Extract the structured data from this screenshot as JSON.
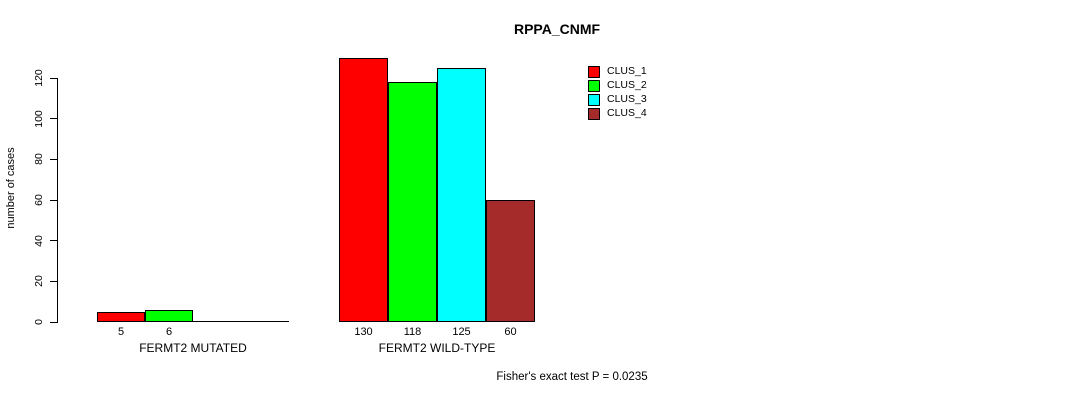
{
  "chart_data": {
    "type": "bar",
    "title": "RPPA_CNMF",
    "ylabel": "number of cases",
    "xlabel": "",
    "ylim": [
      0,
      130
    ],
    "yticks": [
      0,
      20,
      40,
      60,
      80,
      100,
      120
    ],
    "grid": false,
    "legend_position": "top-right",
    "annotation": "Fisher's exact test P = 0.0235",
    "categories": [
      "FERMT2 MUTATED",
      "FERMT2 WILD-TYPE"
    ],
    "series": [
      {
        "name": "CLUS_1",
        "color": "#FF0000",
        "values": [
          5,
          130
        ]
      },
      {
        "name": "CLUS_2",
        "color": "#00FF00",
        "values": [
          6,
          118
        ]
      },
      {
        "name": "CLUS_3",
        "color": "#00FFFF",
        "values": [
          0,
          125
        ]
      },
      {
        "name": "CLUS_4",
        "color": "#A52A2A",
        "values": [
          0,
          60
        ]
      }
    ],
    "bar_value_labels": {
      "FERMT2 MUTATED": [
        "5",
        "6"
      ],
      "FERMT2 WILD-TYPE": [
        "130",
        "118",
        "125",
        "60"
      ]
    }
  }
}
